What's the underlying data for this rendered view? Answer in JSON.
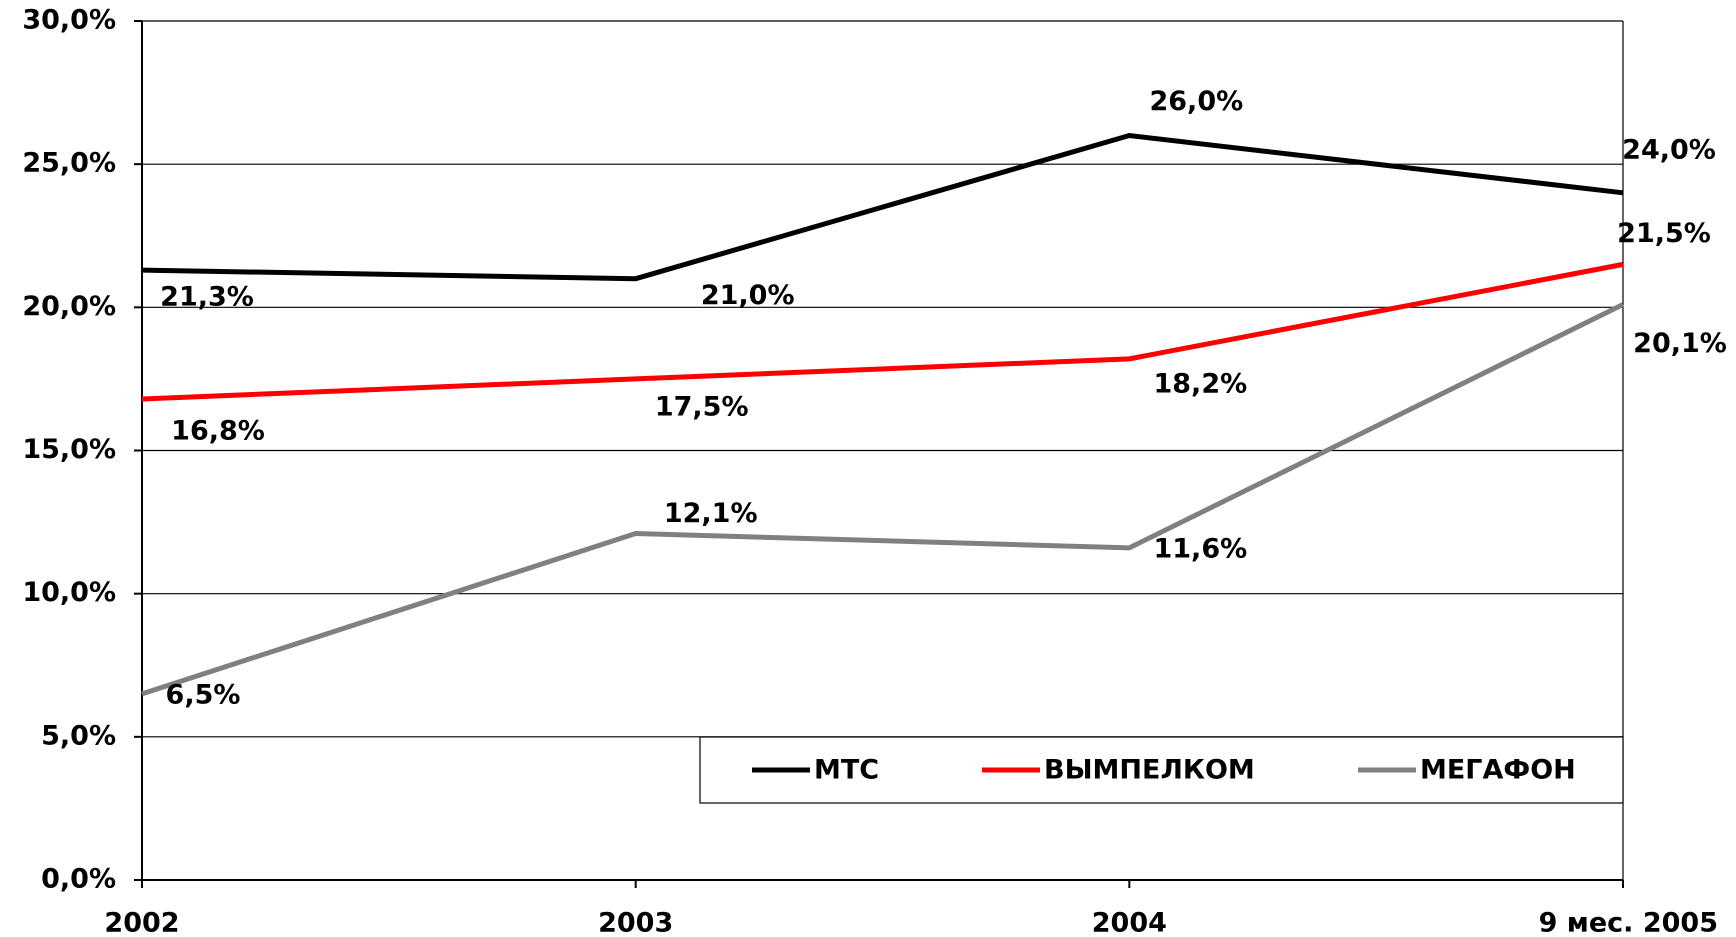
{
  "chart_data": {
    "type": "line",
    "categories": [
      "2002",
      "2003",
      "2004",
      "9 мес. 2005"
    ],
    "series": [
      {
        "name": "МТС",
        "color": "#000000",
        "values": [
          21.3,
          21.0,
          26.0,
          24.0
        ],
        "value_labels": [
          "21,3%",
          "21,0%",
          "26,0%",
          "24,0%"
        ]
      },
      {
        "name": "ВЫМПЕЛКОМ",
        "color": "#ff0000",
        "values": [
          16.8,
          17.5,
          18.2,
          21.5
        ],
        "value_labels": [
          "16,8%",
          "17,5%",
          "18,2%",
          "21,5%"
        ]
      },
      {
        "name": "МЕГАФОН",
        "color": "#808080",
        "values": [
          6.5,
          12.1,
          11.6,
          20.1
        ],
        "value_labels": [
          "6,5%",
          "12,1%",
          "11,6%",
          "20,1%"
        ]
      }
    ],
    "ylim": [
      0,
      30
    ],
    "yticks": [
      {
        "value": 0,
        "label": "0,0%"
      },
      {
        "value": 5,
        "label": "5,0%"
      },
      {
        "value": 10,
        "label": "10,0%"
      },
      {
        "value": 15,
        "label": "15,0%"
      },
      {
        "value": 20,
        "label": "20,0%"
      },
      {
        "value": 25,
        "label": "25,0%"
      },
      {
        "value": 30,
        "label": "30,0%"
      }
    ],
    "grid": true,
    "legend": "bottom-right"
  }
}
